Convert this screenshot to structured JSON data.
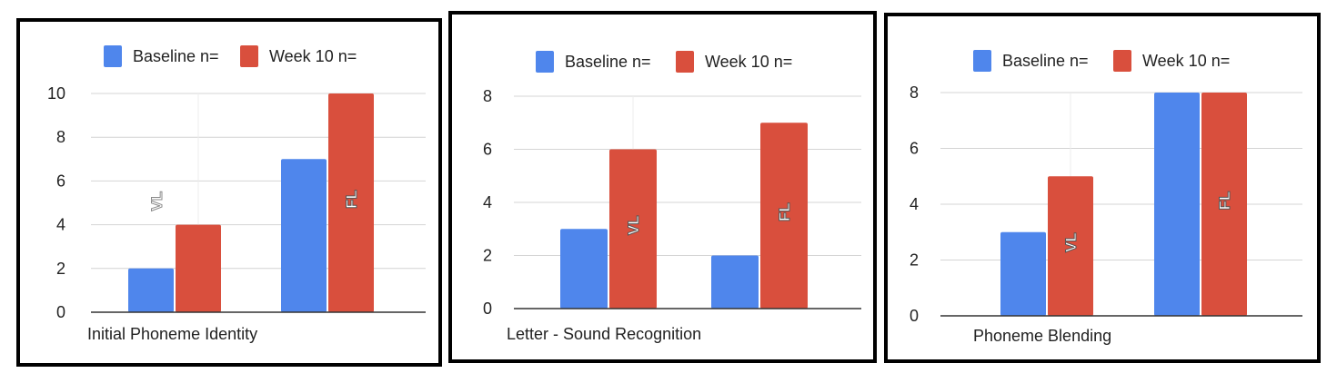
{
  "colors": {
    "baseline": "#4f86ec",
    "week10": "#d94f3d"
  },
  "chart_data": [
    {
      "type": "bar",
      "legend": [
        "Baseline n=",
        "Week 10 n="
      ],
      "category_label": "Initial Phoneme Identity",
      "ylim": [
        0,
        10
      ],
      "yticks": [
        0,
        2,
        4,
        6,
        8,
        10
      ],
      "groups": [
        {
          "label": "VL",
          "label_style": "outline",
          "values": [
            2,
            4
          ]
        },
        {
          "label": "FL",
          "label_style": "filled",
          "values": [
            7,
            10
          ]
        }
      ]
    },
    {
      "type": "bar",
      "legend": [
        "Baseline n=",
        "Week 10 n="
      ],
      "category_label": "Letter - Sound Recognition",
      "ylim": [
        0,
        8
      ],
      "yticks": [
        0,
        2,
        4,
        6,
        8
      ],
      "groups": [
        {
          "label": "VL",
          "label_style": "filled",
          "values": [
            3,
            6
          ]
        },
        {
          "label": "FL",
          "label_style": "filled",
          "values": [
            2,
            7
          ]
        }
      ]
    },
    {
      "type": "bar",
      "legend": [
        "Baseline n=",
        "Week 10 n="
      ],
      "category_label": "Phoneme Blending",
      "ylim": [
        0,
        8
      ],
      "yticks": [
        0,
        2,
        4,
        6,
        8
      ],
      "groups": [
        {
          "label": "VL",
          "label_style": "filled",
          "values": [
            3,
            5
          ]
        },
        {
          "label": "FL",
          "label_style": "filled",
          "values": [
            8,
            8
          ]
        }
      ]
    }
  ]
}
